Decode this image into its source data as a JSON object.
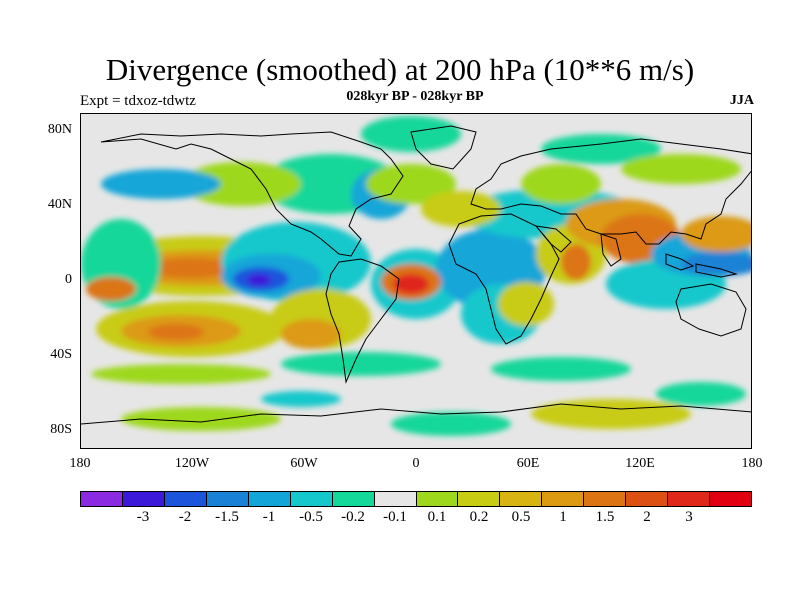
{
  "title": "Divergence (smoothed) at 200 hPa (10**6 m/s)",
  "subtitle": "028kyr BP - 028kyr BP",
  "experiment": "Expt = tdxoz-tdwtz",
  "season": "JJA",
  "map": {
    "variable": "divergence",
    "level": "200 hPa",
    "lat_labels": [
      "80N",
      "40N",
      "0",
      "40S",
      "80S"
    ],
    "lon_labels": [
      "180",
      "120W",
      "60W",
      "0",
      "60E",
      "120E",
      "180"
    ]
  },
  "colorbar": {
    "colors": [
      "#8a2be2",
      "#3c19d8",
      "#1c55dc",
      "#1a82d6",
      "#12a6d8",
      "#14c8cc",
      "#14d79a",
      "#e6e6e6",
      "#9ed81c",
      "#c8cc12",
      "#d8b412",
      "#dc9a12",
      "#dc7414",
      "#dc5014",
      "#e0281a",
      "#e00012"
    ],
    "labels": [
      "-3",
      "-2",
      "-1.5",
      "-1",
      "-0.5",
      "-0.2",
      "-0.1",
      "0.1",
      "0.2",
      "0.5",
      "1",
      "1.5",
      "2",
      "3"
    ]
  }
}
